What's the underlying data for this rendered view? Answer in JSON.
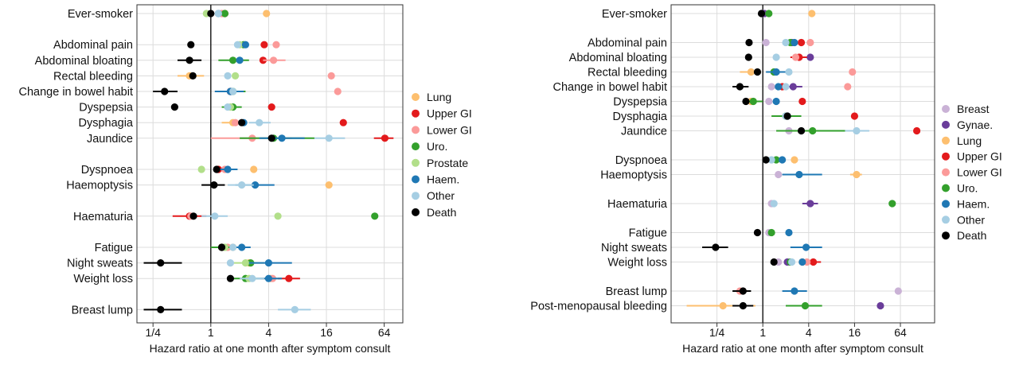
{
  "chart_data": [
    {
      "type": "scatter",
      "xlabel": "Hazard ratio at one month after symptom consult",
      "xscale": "log2",
      "xticks": [
        0.25,
        1,
        4,
        16,
        64
      ],
      "xtick_labels": [
        "1/4",
        "1",
        "4",
        "16",
        "64"
      ],
      "xlim": [
        0.17,
        100
      ],
      "reference_line": 1,
      "grid": true,
      "legend_position": "right",
      "series": [
        {
          "name": "Lung",
          "color": "#FDBF6F"
        },
        {
          "name": "Upper GI",
          "color": "#E31A1C"
        },
        {
          "name": "Lower GI",
          "color": "#FB9A99"
        },
        {
          "name": "Uro.",
          "color": "#33A02C"
        },
        {
          "name": "Prostate",
          "color": "#B2DF8A"
        },
        {
          "name": "Haem.",
          "color": "#1F78B4"
        },
        {
          "name": "Other",
          "color": "#A6CEE3"
        },
        {
          "name": "Death",
          "color": "#000000"
        }
      ],
      "rows": [
        {
          "label": "Ever-smoker",
          "gap": 0,
          "values": {
            "Lung": 3.8,
            "Upper GI": 1.4,
            "Lower GI": 1.3,
            "Uro.": 1.4,
            "Prostate": 0.9,
            "Haem.": 1.2,
            "Other": 1.2,
            "Death": 1.0
          }
        },
        {
          "label": "Abdominal pain",
          "gap": 1,
          "values": {
            "Upper GI": 3.6,
            "Lower GI": 4.8,
            "Uro.": 2.2,
            "Prostate": 2.0,
            "Haem.": 2.3,
            "Other": 1.9,
            "Death": 0.62
          }
        },
        {
          "label": "Abdominal bloating",
          "gap": 0,
          "values": {
            "Upper GI": 3.5,
            "Lower GI": 4.5,
            "Uro.": 1.7,
            "Haem.": 2.0,
            "Death": 0.6
          },
          "errors": {
            "Uro.": [
              1.2,
              2.5
            ],
            "Lower GI": [
              3.5,
              6.0
            ],
            "Death": [
              0.45,
              0.8
            ]
          }
        },
        {
          "label": "Rectal bleeding",
          "gap": 0,
          "values": {
            "Lung": 0.6,
            "Lower GI": 18.0,
            "Prostate": 1.8,
            "Other": 1.5,
            "Death": 0.65
          },
          "errors": {
            "Lung": [
              0.45,
              0.85
            ]
          }
        },
        {
          "label": "Change in bowel habit",
          "gap": 0,
          "values": {
            "Upper GI": 1.6,
            "Lower GI": 21.0,
            "Uro.": 1.7,
            "Haem.": 1.6,
            "Other": 1.7,
            "Death": 0.33
          },
          "errors": {
            "Uro.": [
              1.2,
              2.3
            ],
            "Haem.": [
              1.1,
              2.2
            ],
            "Death": [
              0.25,
              0.45
            ]
          }
        },
        {
          "label": "Dyspepsia",
          "gap": 0,
          "values": {
            "Upper GI": 4.3,
            "Prostate": 1.6,
            "Uro.": 1.7,
            "Other": 1.5,
            "Death": 0.42
          },
          "errors": {
            "Uro.": [
              1.3,
              2.1
            ]
          }
        },
        {
          "label": "Dysphagia",
          "gap": 0,
          "values": {
            "Upper GI": 24.0,
            "Lung": 1.7,
            "Lower GI": 1.8,
            "Other": 3.2,
            "Haem.": 2.2,
            "Death": 2.1
          },
          "errors": {
            "Lung": [
              1.3,
              2.3
            ],
            "Other": [
              2.5,
              4.2
            ]
          }
        },
        {
          "label": "Jaundice",
          "gap": 0,
          "values": {
            "Upper GI": 65.0,
            "Lower GI": 2.7,
            "Uro.": 4.5,
            "Haem.": 5.5,
            "Other": 17.0,
            "Death": 4.3
          },
          "errors": {
            "Upper GI": [
              50,
              80
            ],
            "Lower GI": [
              1.0,
              7.0
            ],
            "Uro.": [
              2.0,
              12.0
            ],
            "Haem.": [
              3.2,
              9.5
            ],
            "Other": [
              12,
              25
            ]
          }
        },
        {
          "label": "Dyspnoea",
          "gap": 1,
          "values": {
            "Lung": 2.8,
            "Upper GI": 1.2,
            "Lower GI": 1.4,
            "Prostate": 0.8,
            "Haem.": 1.5,
            "Death": 1.15
          },
          "errors": {
            "Haem.": [
              1.2,
              1.9
            ]
          }
        },
        {
          "label": "Haemoptysis",
          "gap": 0,
          "values": {
            "Lung": 17.0,
            "Haem.": 2.9,
            "Other": 2.1,
            "Death": 1.08
          },
          "errors": {
            "Haem.": [
              1.8,
              4.6
            ],
            "Other": [
              1.5,
              2.8
            ],
            "Death": [
              0.8,
              1.4
            ]
          }
        },
        {
          "label": "Haematuria",
          "gap": 1,
          "values": {
            "Upper GI": 0.6,
            "Lower GI": 0.62,
            "Uro.": 51.0,
            "Prostate": 5.0,
            "Other": 1.1,
            "Death": 0.66
          },
          "errors": {
            "Upper GI": [
              0.4,
              0.9
            ],
            "Other": [
              0.8,
              1.5
            ]
          }
        },
        {
          "label": "Fatigue",
          "gap": 1,
          "values": {
            "Lung": 1.7,
            "Upper GI": 1.3,
            "Lower GI": 1.5,
            "Uro.": 1.3,
            "Prostate": 1.4,
            "Haem.": 2.1,
            "Other": 1.7,
            "Death": 1.3
          },
          "errors": {
            "Uro.": [
              1.0,
              1.8
            ],
            "Haem.": [
              1.6,
              2.6
            ]
          }
        },
        {
          "label": "Night sweats",
          "gap": 0,
          "values": {
            "Lung": 2.5,
            "Prostate": 2.3,
            "Uro.": 2.6,
            "Other": 1.6,
            "Haem.": 4.0,
            "Death": 0.3
          },
          "errors": {
            "Haem.": [
              2.5,
              7.0
            ],
            "Prostate": [
              1.5,
              3.6
            ],
            "Death": [
              0.2,
              0.5
            ]
          }
        },
        {
          "label": "Weight loss",
          "gap": 0,
          "values": {
            "Upper GI": 6.5,
            "Lower GI": 4.4,
            "Lung": 4.2,
            "Uro.": 2.3,
            "Prostate": 2.5,
            "Haem.": 4.0,
            "Other": 2.7,
            "Death": 1.6
          },
          "errors": {
            "Upper GI": [
              5.0,
              8.5
            ],
            "Haem.": [
              3.0,
              5.5
            ],
            "Other": [
              2.0,
              3.6
            ],
            "Uro.": [
              1.7,
              3.0
            ],
            "Lung": [
              3.3,
              5.3
            ]
          }
        },
        {
          "label": "Breast lump",
          "gap": 1,
          "values": {
            "Other": 7.5,
            "Death": 0.3
          },
          "errors": {
            "Other": [
              5.0,
              11.0
            ],
            "Death": [
              0.2,
              0.5
            ]
          }
        }
      ]
    },
    {
      "type": "scatter",
      "xlabel": "Hazard ratio at one month after symptom consult",
      "xscale": "log2",
      "xticks": [
        0.25,
        1,
        4,
        16,
        64
      ],
      "xtick_labels": [
        "1/4",
        "1",
        "4",
        "16",
        "64"
      ],
      "xlim": [
        0.0625,
        180
      ],
      "reference_line": 1,
      "grid": true,
      "legend_position": "right",
      "series": [
        {
          "name": "Breast",
          "color": "#CAB2D6"
        },
        {
          "name": "Gynae.",
          "color": "#6A3D9A"
        },
        {
          "name": "Lung",
          "color": "#FDBF6F"
        },
        {
          "name": "Upper GI",
          "color": "#E31A1C"
        },
        {
          "name": "Lower GI",
          "color": "#FB9A99"
        },
        {
          "name": "Uro.",
          "color": "#33A02C"
        },
        {
          "name": "Haem.",
          "color": "#1F78B4"
        },
        {
          "name": "Other",
          "color": "#A6CEE3"
        },
        {
          "name": "Death",
          "color": "#000000"
        }
      ],
      "rows": [
        {
          "label": "Ever-smoker",
          "gap": 0,
          "values": {
            "Lung": 4.4,
            "Breast": 1.0,
            "Gynae.": 1.05,
            "Uro.": 1.2,
            "Death": 0.96
          }
        },
        {
          "label": "Abdominal pain",
          "gap": 1,
          "values": {
            "Breast": 1.1,
            "Gynae.": 2.4,
            "Upper GI": 3.2,
            "Lower GI": 4.2,
            "Uro.": 2.3,
            "Haem.": 2.6,
            "Other": 2.0,
            "Death": 0.66
          }
        },
        {
          "label": "Abdominal bloating",
          "gap": 0,
          "values": {
            "Gynae.": 4.2,
            "Upper GI": 3.0,
            "Lower GI": 2.7,
            "Other": 1.5,
            "Death": 0.65
          },
          "errors": {
            "Upper GI": [
              2.3,
              3.8
            ]
          }
        },
        {
          "label": "Rectal bleeding",
          "gap": 0,
          "values": {
            "Lung": 0.7,
            "Lower GI": 15.0,
            "Uro.": 1.4,
            "Haem.": 1.5,
            "Other": 2.2,
            "Death": 0.85
          },
          "errors": {
            "Lung": [
              0.5,
              0.95
            ],
            "Haem.": [
              1.1,
              2.0
            ]
          }
        },
        {
          "label": "Change in bowel habit",
          "gap": 0,
          "values": {
            "Breast": 1.3,
            "Gynae.": 2.5,
            "Upper GI": 1.8,
            "Lower GI": 13.0,
            "Haem.": 1.6,
            "Other": 2.0,
            "Death": 0.5
          },
          "errors": {
            "Death": [
              0.4,
              0.65
            ],
            "Gynae.": [
              1.8,
              3.3
            ]
          }
        },
        {
          "label": "Dyspepsia",
          "gap": 0,
          "values": {
            "Lung": 0.7,
            "Upper GI": 3.3,
            "Uro.": 0.75,
            "Breast": 1.2,
            "Haem.": 1.5,
            "Death": 0.6
          },
          "errors": {
            "Uro.": [
              0.55,
              1.0
            ]
          }
        },
        {
          "label": "Dysphagia",
          "gap": 0,
          "values": {
            "Upper GI": 16.0,
            "Uro.": 2.0,
            "Haem.": 2.1,
            "Other": 2.0,
            "Death": 2.1
          },
          "errors": {
            "Uro.": [
              1.3,
              3.2
            ]
          }
        },
        {
          "label": "Jaundice",
          "gap": 0,
          "values": {
            "Upper GI": 105.0,
            "Breast": 2.2,
            "Uro.": 4.5,
            "Other": 17.0,
            "Death": 3.2
          },
          "errors": {
            "Uro.": [
              1.5,
              14.0
            ],
            "Other": [
              12.0,
              25.0
            ]
          }
        },
        {
          "label": "Dyspnoea",
          "gap": 1,
          "values": {
            "Lung": 2.6,
            "Uro.": 1.5,
            "Haem.": 1.8,
            "Other": 1.3,
            "Death": 1.1
          }
        },
        {
          "label": "Haemoptysis",
          "gap": 0,
          "values": {
            "Lung": 17.0,
            "Breast": 1.6,
            "Haem.": 3.0
          },
          "errors": {
            "Haem.": [
              1.8,
              6.0
            ],
            "Lung": [
              14.0,
              20.0
            ]
          }
        },
        {
          "label": "Haematuria",
          "gap": 1,
          "values": {
            "Breast": 1.3,
            "Gynae.": 4.2,
            "Uro.": 50.0,
            "Other": 1.4
          },
          "errors": {
            "Gynae.": [
              3.3,
              5.3
            ]
          }
        },
        {
          "label": "Fatigue",
          "gap": 1,
          "values": {
            "Breast": 1.2,
            "Uro.": 1.3,
            "Haem.": 2.2,
            "Death": 0.85
          }
        },
        {
          "label": "Night sweats",
          "gap": 0,
          "values": {
            "Haem.": 3.7,
            "Death": 0.24
          },
          "errors": {
            "Haem.": [
              2.3,
              6.0
            ],
            "Death": [
              0.16,
              0.35
            ]
          }
        },
        {
          "label": "Weight loss",
          "gap": 0,
          "values": {
            "Breast": 1.6,
            "Gynae.": 2.1,
            "Upper GI": 4.6,
            "Lower GI": 3.8,
            "Lung": 3.3,
            "Uro.": 2.3,
            "Haem.": 3.3,
            "Other": 2.4,
            "Death": 1.4
          },
          "errors": {
            "Upper GI": [
              3.6,
              5.8
            ]
          }
        },
        {
          "label": "Breast lump",
          "gap": 1,
          "values": {
            "Breast": 60.0,
            "Lower GI": 0.5,
            "Death": 0.55,
            "Haem.": 2.6
          },
          "errors": {
            "Death": [
              0.4,
              0.7
            ],
            "Haem.": [
              1.8,
              3.8
            ]
          }
        },
        {
          "label": "Post-menopausal bleeding",
          "gap": 0,
          "values": {
            "Lung": 0.3,
            "Gynae.": 35.0,
            "Uro.": 3.6,
            "Death": 0.55
          },
          "errors": {
            "Lung": [
              0.1,
              0.8
            ],
            "Uro.": [
              2.0,
              6.0
            ],
            "Death": [
              0.4,
              0.75
            ]
          }
        }
      ]
    }
  ]
}
